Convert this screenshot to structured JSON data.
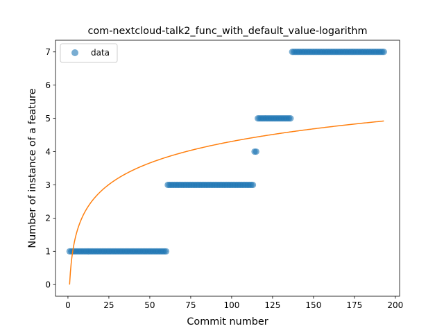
{
  "chart_data": {
    "type": "scatter",
    "title": "com-nextcloud-talk2_func_with_default_value-logarithm",
    "xlabel": "Commit number",
    "ylabel": "Number of instance of a feature",
    "xlim": [
      -7.6,
      202.6
    ],
    "ylim": [
      -0.35,
      7.35
    ],
    "xticks": [
      0,
      25,
      50,
      75,
      100,
      125,
      150,
      175,
      200
    ],
    "yticks": [
      0,
      1,
      2,
      3,
      4,
      5,
      6,
      7
    ],
    "grid": false,
    "legend": {
      "placement": "upper-left",
      "entries": [
        "data"
      ]
    },
    "colors": {
      "data": "#1f77b4",
      "fit": "#ff7f0e"
    },
    "series": [
      {
        "name": "data",
        "kind": "scatter",
        "segments": [
          {
            "x_from": 1,
            "x_to": 60,
            "y": 1
          },
          {
            "x_from": 61,
            "x_to": 113,
            "y": 3
          },
          {
            "x_from": 114,
            "x_to": 115,
            "y": 4
          },
          {
            "x_from": 116,
            "x_to": 136,
            "y": 5
          },
          {
            "x_from": 137,
            "x_to": 193,
            "y": 7
          }
        ]
      },
      {
        "kind": "line",
        "formula": "a*ln(x)",
        "a": 0.935,
        "x_from": 1,
        "x_to": 193
      }
    ]
  }
}
